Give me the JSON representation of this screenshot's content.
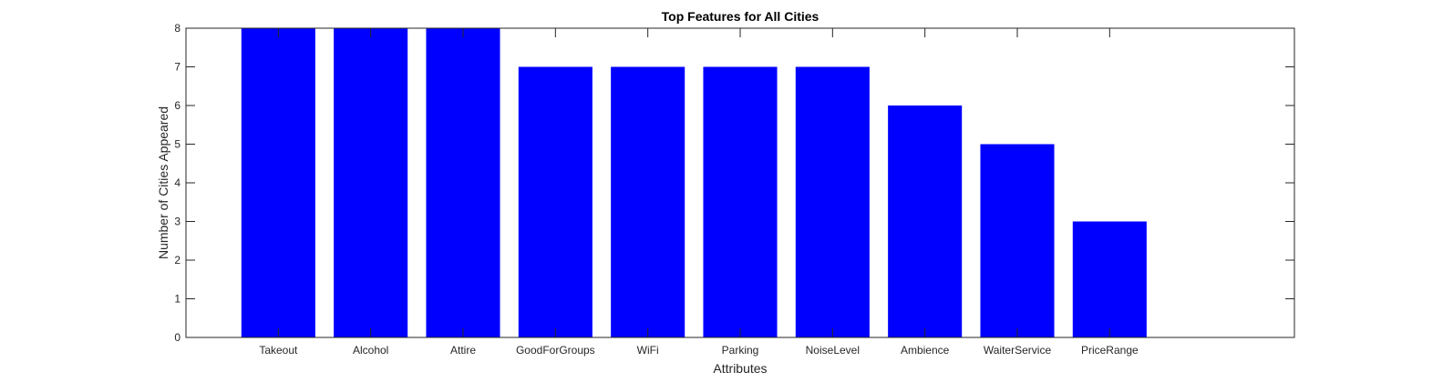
{
  "chart_data": {
    "type": "bar",
    "title": "Top Features for All Cities",
    "xlabel": "Attributes",
    "ylabel": "Number of Cities Appeared",
    "categories": [
      "Takeout",
      "Alcohol",
      "Attire",
      "GoodForGroups",
      "WiFi",
      "Parking",
      "NoiseLevel",
      "Ambience",
      "WaiterService",
      "PriceRange"
    ],
    "values": [
      8,
      8,
      8,
      7,
      7,
      7,
      7,
      6,
      5,
      3
    ],
    "ylim": [
      0,
      8
    ],
    "xlim": [
      0,
      12
    ],
    "yticks": [
      0,
      1,
      2,
      3,
      4,
      5,
      6,
      7,
      8
    ],
    "grid": false,
    "legend": "none",
    "bar_color": "#0000ff"
  }
}
